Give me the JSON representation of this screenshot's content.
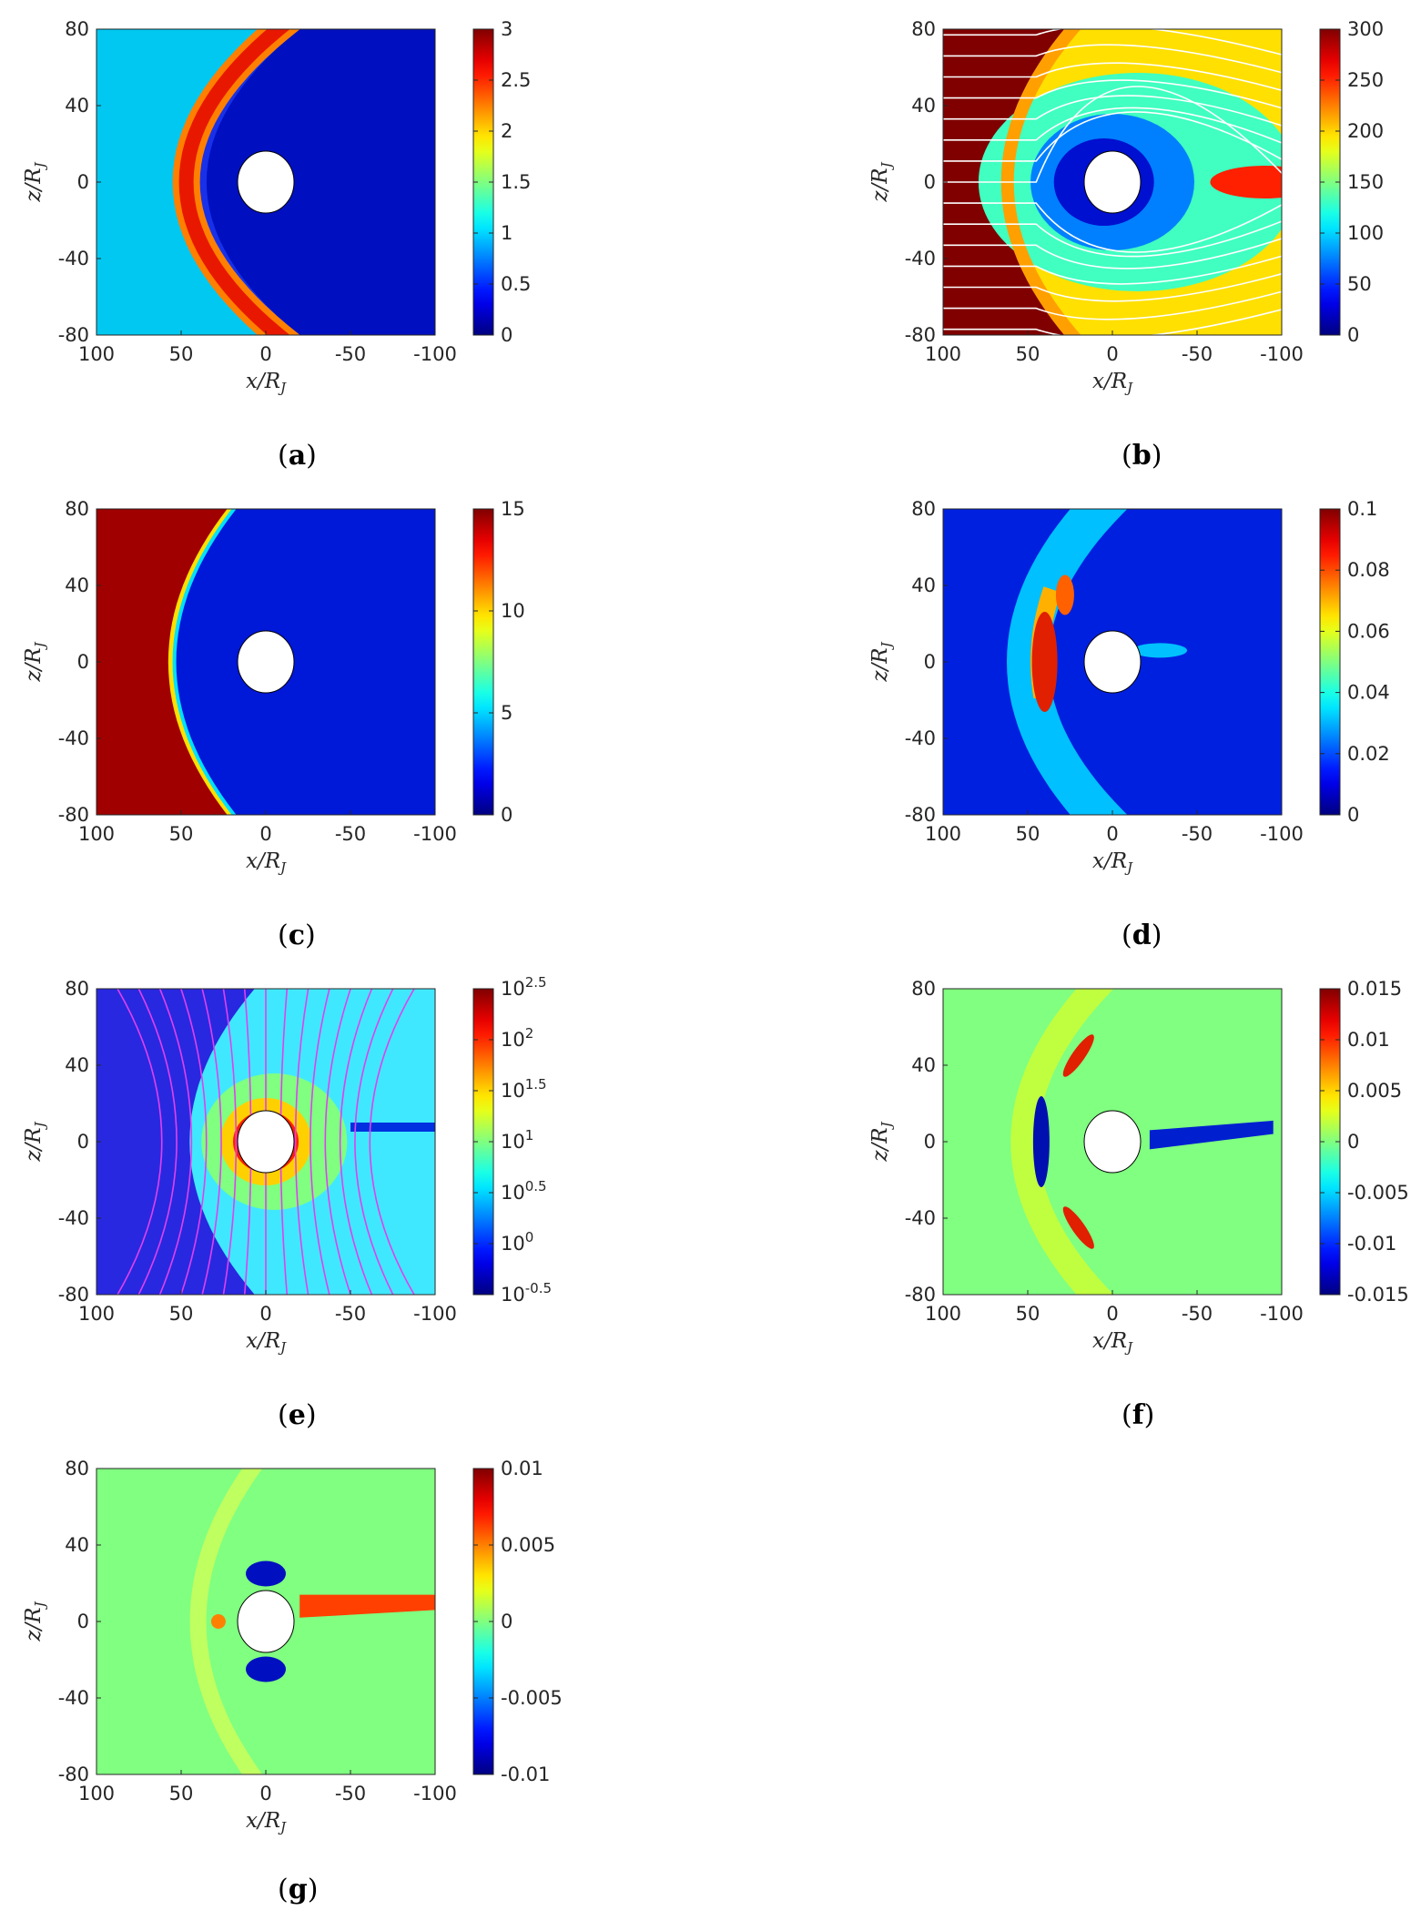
{
  "chart_data": [
    {
      "type": "heatmap",
      "panel_label": "(a)",
      "panel_letter": "a",
      "x_ticks": [
        "100",
        "50",
        "0",
        "-50",
        "-100"
      ],
      "y_ticks": [
        "80",
        "40",
        "0",
        "-40",
        "-80"
      ],
      "xlabel": "x/R",
      "xlabel_sub": "J",
      "ylabel": "z/R",
      "ylabel_sub": "J",
      "xlim": [
        100,
        -100
      ],
      "ylim": [
        -80,
        80
      ],
      "colorbar": {
        "ticks": [
          "0",
          "0.5",
          "1",
          "1.5",
          "2",
          "2.5",
          "3"
        ],
        "range": [
          0,
          3
        ],
        "scale": "linear"
      },
      "field": "bowshock",
      "background": "#00c8f0",
      "streamlines": "none"
    },
    {
      "type": "heatmap",
      "panel_label": "(b)",
      "panel_letter": "b",
      "x_ticks": [
        "100",
        "50",
        "0",
        "-50",
        "-100"
      ],
      "y_ticks": [
        "80",
        "40",
        "0",
        "-40",
        "-80"
      ],
      "xlabel": "x/R",
      "xlabel_sub": "J",
      "ylabel": "z/R",
      "ylabel_sub": "J",
      "xlim": [
        100,
        -100
      ],
      "ylim": [
        -80,
        80
      ],
      "colorbar": {
        "ticks": [
          "0",
          "50",
          "100",
          "150",
          "200",
          "250",
          "300"
        ],
        "range": [
          0,
          300
        ],
        "scale": "linear"
      },
      "field": "velocity",
      "background": "#800000",
      "streamlines": "white"
    },
    {
      "type": "heatmap",
      "panel_label": "(c)",
      "panel_letter": "c",
      "x_ticks": [
        "100",
        "50",
        "0",
        "-50",
        "-100"
      ],
      "y_ticks": [
        "80",
        "40",
        "0",
        "-40",
        "-80"
      ],
      "xlabel": "x/R",
      "xlabel_sub": "J",
      "ylabel": "z/R",
      "ylabel_sub": "J",
      "xlim": [
        100,
        -100
      ],
      "ylim": [
        -80,
        80
      ],
      "colorbar": {
        "ticks": [
          "0",
          "5",
          "10",
          "15"
        ],
        "range": [
          0,
          15
        ],
        "scale": "linear"
      },
      "field": "machfront",
      "background": "#0018d8",
      "streamlines": "none"
    },
    {
      "type": "heatmap",
      "panel_label": "(d)",
      "panel_letter": "d",
      "x_ticks": [
        "100",
        "50",
        "0",
        "-50",
        "-100"
      ],
      "y_ticks": [
        "80",
        "40",
        "0",
        "-40",
        "-80"
      ],
      "xlabel": "x/R",
      "xlabel_sub": "J",
      "ylabel": "z/R",
      "ylabel_sub": "J",
      "xlim": [
        100,
        -100
      ],
      "ylim": [
        -80,
        80
      ],
      "colorbar": {
        "ticks": [
          "0",
          "0.02",
          "0.04",
          "0.06",
          "0.08",
          "0.1"
        ],
        "range": [
          0,
          0.1
        ],
        "scale": "linear"
      },
      "field": "pressure",
      "background": "#0020e0",
      "streamlines": "none"
    },
    {
      "type": "heatmap",
      "panel_label": "(e)",
      "panel_letter": "e",
      "x_ticks": [
        "100",
        "50",
        "0",
        "-50",
        "-100"
      ],
      "y_ticks": [
        "80",
        "40",
        "0",
        "-40",
        "-80"
      ],
      "xlabel": "x/R",
      "xlabel_sub": "J",
      "ylabel": "z/R",
      "ylabel_sub": "J",
      "xlim": [
        100,
        -100
      ],
      "ylim": [
        -80,
        80
      ],
      "colorbar": {
        "ticks": [
          "-0.5",
          "0",
          "0.5",
          "1",
          "1.5",
          "2",
          "2.5"
        ],
        "tick_base": "10",
        "range_exponent": [
          -0.5,
          2.5
        ],
        "scale": "log"
      },
      "field": "bfield",
      "background": "#2828e0",
      "streamlines": "magenta"
    },
    {
      "type": "heatmap",
      "panel_label": "(f)",
      "panel_letter": "f",
      "x_ticks": [
        "100",
        "50",
        "0",
        "-50",
        "-100"
      ],
      "y_ticks": [
        "80",
        "40",
        "0",
        "-40",
        "-80"
      ],
      "xlabel": "x/R",
      "xlabel_sub": "J",
      "ylabel": "z/R",
      "ylabel_sub": "J",
      "xlim": [
        100,
        -100
      ],
      "ylim": [
        -80,
        80
      ],
      "colorbar": {
        "ticks": [
          "-0.015",
          "-0.01",
          "-0.005",
          "0",
          "0.005",
          "0.01",
          "0.015"
        ],
        "range": [
          -0.015,
          0.015
        ],
        "scale": "linear"
      },
      "field": "current_f",
      "background": "#80ff80",
      "streamlines": "none"
    },
    {
      "type": "heatmap",
      "panel_label": "(g)",
      "panel_letter": "g",
      "x_ticks": [
        "100",
        "50",
        "0",
        "-50",
        "-100"
      ],
      "y_ticks": [
        "80",
        "40",
        "0",
        "-40",
        "-80"
      ],
      "xlabel": "x/R",
      "xlabel_sub": "J",
      "ylabel": "z/R",
      "ylabel_sub": "J",
      "xlim": [
        100,
        -100
      ],
      "ylim": [
        -80,
        80
      ],
      "colorbar": {
        "ticks": [
          "-0.01",
          "-0.005",
          "0",
          "0.005",
          "0.01"
        ],
        "range": [
          -0.01,
          0.01
        ],
        "scale": "linear"
      },
      "field": "current_g",
      "background": "#80ff80",
      "streamlines": "none"
    }
  ]
}
